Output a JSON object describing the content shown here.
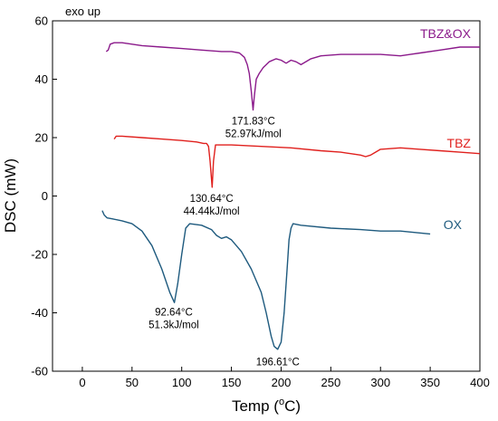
{
  "chart_data": {
    "type": "line",
    "title": "",
    "top_note": "exo up",
    "xlabel": {
      "pre": "Temp (",
      "sup": "o",
      "post": "C)"
    },
    "ylabel": "DSC (mW)",
    "xlim": [
      -30,
      400
    ],
    "ylim": [
      -60,
      60
    ],
    "x_ticks": [
      0,
      50,
      100,
      150,
      200,
      250,
      300,
      350,
      400
    ],
    "y_ticks": [
      -60,
      -40,
      -20,
      0,
      20,
      40,
      60
    ],
    "grid": false,
    "series": [
      {
        "name": "TBZ&OX",
        "color": "#8b1a8b",
        "x": [
          24,
          26,
          28,
          32,
          40,
          60,
          80,
          100,
          120,
          140,
          150,
          158,
          163,
          166,
          168,
          170,
          171.83,
          173,
          175,
          178,
          182,
          188,
          195,
          200,
          205,
          210,
          215,
          220,
          230,
          240,
          260,
          280,
          300,
          320,
          330,
          340,
          360,
          380,
          400
        ],
        "y": [
          49.5,
          50,
          52,
          52.5,
          52.5,
          51.5,
          51,
          50.5,
          50,
          49.5,
          49.5,
          49,
          47.5,
          45,
          42,
          36,
          29.5,
          34,
          40,
          42,
          44,
          46,
          47,
          46.5,
          45.5,
          46.5,
          46,
          45,
          47,
          48,
          48.5,
          48.5,
          48.5,
          48,
          48.5,
          49,
          50,
          51,
          51
        ]
      },
      {
        "name": "TBZ",
        "color": "#e0201d",
        "x": [
          32,
          34,
          40,
          60,
          80,
          100,
          115,
          122,
          125,
          127,
          128.5,
          130.64,
          132,
          134,
          138,
          150,
          180,
          210,
          240,
          260,
          270,
          280,
          285,
          290,
          295,
          300,
          320,
          340,
          360,
          380,
          400
        ],
        "y": [
          19.5,
          20.5,
          20.5,
          20,
          19.5,
          19,
          18.5,
          18,
          18,
          17,
          12,
          3,
          12,
          17.5,
          17.5,
          17.5,
          17,
          16.5,
          15.5,
          15,
          14.5,
          14,
          13.5,
          14,
          15,
          16,
          16.5,
          16,
          15.5,
          15,
          14.5
        ]
      },
      {
        "name": "OX",
        "color": "#1e5a7e",
        "x": [
          20,
          22,
          25,
          30,
          40,
          50,
          60,
          70,
          80,
          88,
          92.64,
          96,
          100,
          104,
          108,
          120,
          130,
          135,
          140,
          145,
          150,
          160,
          170,
          180,
          185,
          190,
          193,
          196.61,
          200,
          203,
          206,
          208,
          210,
          212,
          220,
          250,
          280,
          300,
          320,
          350
        ],
        "y": [
          -5,
          -6.5,
          -7.5,
          -7.8,
          -8.5,
          -9.5,
          -12,
          -17,
          -25,
          -33,
          -36.5,
          -30,
          -20,
          -11,
          -9.5,
          -10,
          -11.5,
          -13.5,
          -14.5,
          -14,
          -15,
          -19,
          -25,
          -33,
          -40,
          -48,
          -51.5,
          -52.5,
          -50,
          -40,
          -25,
          -15,
          -11,
          -9.5,
          -10,
          -11,
          -11.5,
          -12,
          -12,
          -13
        ]
      }
    ],
    "annotations": [
      {
        "lines": [
          "171.83°C",
          "52.97kJ/mol"
        ],
        "x": 172,
        "y": 24.5,
        "align": "middle"
      },
      {
        "lines": [
          "130.64°C",
          "44.44kJ/mol"
        ],
        "x": 130,
        "y": -2,
        "align": "middle"
      },
      {
        "lines": [
          "92.64°C",
          "51.3kJ/mol"
        ],
        "x": 92,
        "y": -41,
        "align": "middle"
      },
      {
        "lines": [
          "196.61°C"
        ],
        "x": 196.6,
        "y": -58,
        "align": "middle"
      }
    ]
  }
}
